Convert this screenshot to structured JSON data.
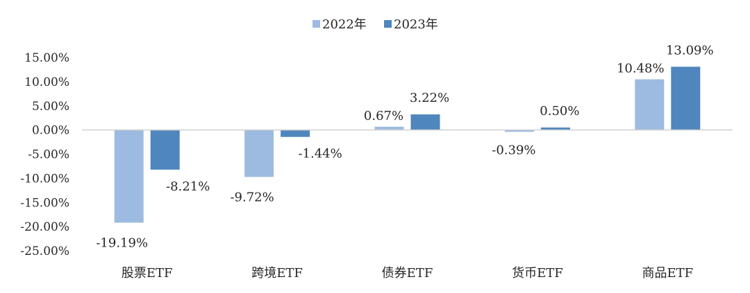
{
  "chart_data": {
    "type": "bar",
    "title": "",
    "xlabel": "",
    "ylabel": "",
    "categories": [
      "股票ETF",
      "跨境ETF",
      "债券ETF",
      "货币ETF",
      "商品ETF"
    ],
    "series": [
      {
        "name": "2022年",
        "color": "#9dbbe1",
        "values": [
          -19.19,
          -9.72,
          0.67,
          -0.39,
          10.48
        ],
        "labels": [
          "-19.19%",
          "-9.72%",
          "0.67%",
          "-0.39%",
          "10.48%"
        ]
      },
      {
        "name": "2023年",
        "color": "#4f86bd",
        "values": [
          -8.21,
          -1.44,
          3.22,
          0.5,
          13.09
        ],
        "labels": [
          "-8.21%",
          "-1.44%",
          "3.22%",
          "0.50%",
          "13.09%"
        ]
      }
    ],
    "ylim": [
      -25,
      15
    ],
    "yticks": [
      15,
      10,
      5,
      0,
      -5,
      -10,
      -15,
      -20,
      -25
    ],
    "ytick_labels": [
      "15.00%",
      "10.00%",
      "5.00%",
      "0.00%",
      "-5.00%",
      "-10.00%",
      "-15.00%",
      "-20.00%",
      "-25.00%"
    ],
    "grid": false,
    "legend_position": "top-center"
  }
}
